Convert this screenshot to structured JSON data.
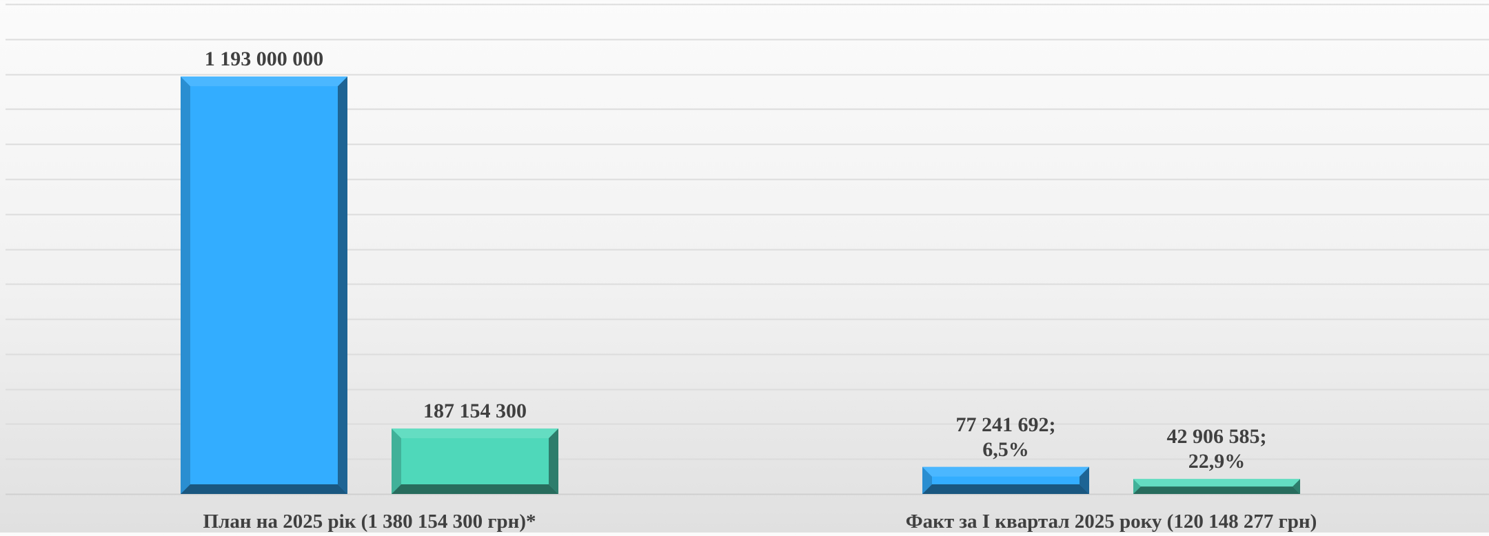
{
  "chart_data": {
    "type": "bar",
    "categories": [
      "План на 2025 рік (1 380 154 300 грн)*",
      "Факт за І квартал 2025 року (120 148 277 грн)"
    ],
    "series": [
      {
        "values": [
          1193000000,
          77241692
        ],
        "labels": [
          "1 193 000 000",
          [
            "77 241 692;",
            "6,5%"
          ]
        ],
        "color": "#33adff"
      },
      {
        "values": [
          187154300,
          42906585
        ],
        "labels": [
          "187 154 300",
          [
            "42 906 585;",
            "22,9%"
          ]
        ],
        "color": "#4fd8ba"
      }
    ],
    "ylim": [
      0,
      1400000000
    ],
    "grid": true,
    "legend": "none"
  }
}
